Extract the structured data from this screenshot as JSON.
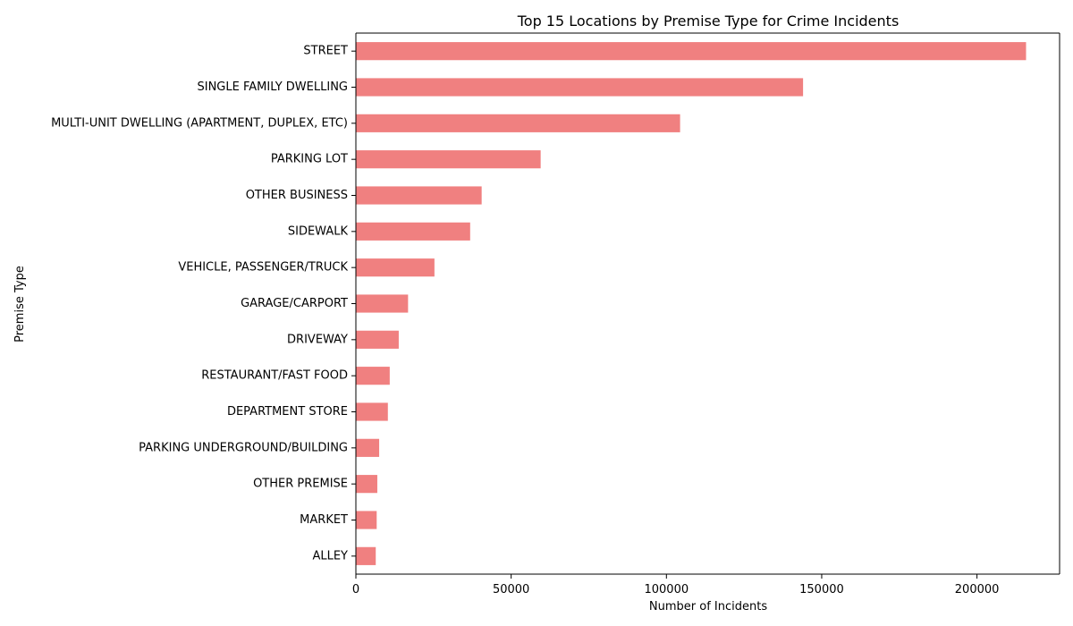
{
  "chart_data": {
    "type": "bar",
    "orientation": "horizontal",
    "title": "Top 15 Locations by Premise Type for Crime Incidents",
    "xlabel": "Number of Incidents",
    "ylabel": "Premise Type",
    "categories": [
      "STREET",
      "SINGLE FAMILY DWELLING",
      "MULTI-UNIT DWELLING (APARTMENT, DUPLEX, ETC)",
      "PARKING LOT",
      "OTHER BUSINESS",
      "SIDEWALK",
      "VEHICLE, PASSENGER/TRUCK",
      "GARAGE/CARPORT",
      "DRIVEWAY",
      "RESTAURANT/FAST FOOD",
      "DEPARTMENT STORE",
      "PARKING UNDERGROUND/BUILDING",
      "OTHER PREMISE",
      "MARKET",
      "ALLEY"
    ],
    "values": [
      215800,
      144000,
      104400,
      59500,
      40500,
      36800,
      25300,
      16800,
      13800,
      10900,
      10300,
      7500,
      6900,
      6700,
      6400
    ],
    "xlim": [
      0,
      226600
    ],
    "xticks": [
      0,
      50000,
      100000,
      150000,
      200000
    ],
    "xtick_labels": [
      "0",
      "50000",
      "100000",
      "150000",
      "200000"
    ],
    "bar_color": "#f08080",
    "grid": false,
    "legend": "none"
  }
}
